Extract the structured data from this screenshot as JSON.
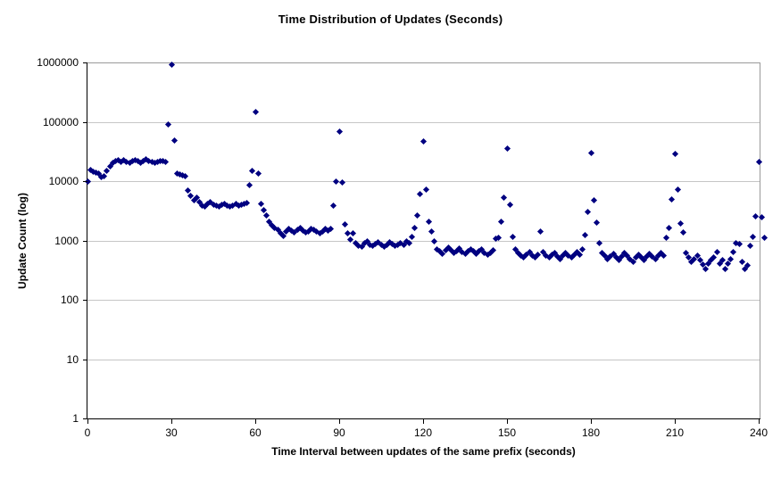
{
  "colors": {
    "background": "#ffffff",
    "gridline": "#c6c6c6",
    "axis": "#000000",
    "plot_border": "#9a9a9a",
    "marker": "#000080",
    "text": "#000000"
  },
  "chart_data": {
    "type": "scatter",
    "title": "Time Distribution of Updates (Seconds)",
    "xlabel": "Time Interval between updates of the same prefix (seconds)",
    "ylabel": "Update Count (log)",
    "legend": "none",
    "grid": "horizontal",
    "x_range": [
      0,
      240
    ],
    "x_ticks": [
      0,
      30,
      60,
      90,
      120,
      150,
      180,
      210,
      240
    ],
    "y_scale": "log",
    "y_range": [
      1,
      1000000
    ],
    "y_ticks": [
      1000000,
      100000,
      10000,
      1000,
      100,
      10,
      1
    ],
    "marker": {
      "shape": "diamond",
      "color": "#000080",
      "size": 6
    },
    "points": [
      [
        0,
        9800
      ],
      [
        1,
        15200
      ],
      [
        2,
        14500
      ],
      [
        3,
        13800
      ],
      [
        4,
        13200
      ],
      [
        5,
        11800
      ],
      [
        6,
        12300
      ],
      [
        7,
        14800
      ],
      [
        8,
        17500
      ],
      [
        9,
        20500
      ],
      [
        10,
        21800
      ],
      [
        11,
        22500
      ],
      [
        12,
        21300
      ],
      [
        13,
        22800
      ],
      [
        14,
        21000
      ],
      [
        15,
        20300
      ],
      [
        16,
        21500
      ],
      [
        17,
        22800
      ],
      [
        18,
        21500
      ],
      [
        19,
        20400
      ],
      [
        20,
        21800
      ],
      [
        21,
        23200
      ],
      [
        22,
        22000
      ],
      [
        23,
        20800
      ],
      [
        24,
        20300
      ],
      [
        25,
        20800
      ],
      [
        26,
        21500
      ],
      [
        27,
        22000
      ],
      [
        28,
        21200
      ],
      [
        29,
        90000
      ],
      [
        30,
        930000
      ],
      [
        31,
        48000
      ],
      [
        32,
        13500
      ],
      [
        33,
        13100
      ],
      [
        34,
        12700
      ],
      [
        35,
        12300
      ],
      [
        36,
        7000
      ],
      [
        37,
        5600
      ],
      [
        38,
        4700
      ],
      [
        39,
        5300
      ],
      [
        40,
        4400
      ],
      [
        41,
        3900
      ],
      [
        42,
        3700
      ],
      [
        43,
        4200
      ],
      [
        44,
        4400
      ],
      [
        45,
        4000
      ],
      [
        46,
        3800
      ],
      [
        47,
        3700
      ],
      [
        48,
        4000
      ],
      [
        49,
        4200
      ],
      [
        50,
        3900
      ],
      [
        51,
        3700
      ],
      [
        52,
        3900
      ],
      [
        53,
        4100
      ],
      [
        54,
        3800
      ],
      [
        55,
        4000
      ],
      [
        56,
        4200
      ],
      [
        57,
        4300
      ],
      [
        58,
        8500
      ],
      [
        59,
        15000
      ],
      [
        60,
        145000
      ],
      [
        61,
        13200
      ],
      [
        62,
        4100
      ],
      [
        63,
        3300
      ],
      [
        64,
        2600
      ],
      [
        65,
        2100
      ],
      [
        66,
        1800
      ],
      [
        67,
        1600
      ],
      [
        68,
        1500
      ],
      [
        69,
        1300
      ],
      [
        70,
        1200
      ],
      [
        71,
        1400
      ],
      [
        72,
        1550
      ],
      [
        73,
        1450
      ],
      [
        74,
        1350
      ],
      [
        75,
        1500
      ],
      [
        76,
        1600
      ],
      [
        77,
        1450
      ],
      [
        78,
        1350
      ],
      [
        79,
        1400
      ],
      [
        80,
        1550
      ],
      [
        81,
        1500
      ],
      [
        82,
        1400
      ],
      [
        83,
        1300
      ],
      [
        84,
        1400
      ],
      [
        85,
        1550
      ],
      [
        86,
        1450
      ],
      [
        87,
        1550
      ],
      [
        88,
        3900
      ],
      [
        89,
        9800
      ],
      [
        90,
        68000
      ],
      [
        91,
        9500
      ],
      [
        92,
        1850
      ],
      [
        93,
        1300
      ],
      [
        94,
        1050
      ],
      [
        95,
        1300
      ],
      [
        96,
        900
      ],
      [
        97,
        820
      ],
      [
        98,
        780
      ],
      [
        99,
        900
      ],
      [
        100,
        950
      ],
      [
        101,
        850
      ],
      [
        102,
        800
      ],
      [
        103,
        880
      ],
      [
        104,
        920
      ],
      [
        105,
        850
      ],
      [
        106,
        780
      ],
      [
        107,
        850
      ],
      [
        108,
        920
      ],
      [
        109,
        870
      ],
      [
        110,
        800
      ],
      [
        111,
        850
      ],
      [
        112,
        900
      ],
      [
        113,
        850
      ],
      [
        114,
        950
      ],
      [
        115,
        900
      ],
      [
        116,
        1150
      ],
      [
        117,
        1600
      ],
      [
        118,
        2650
      ],
      [
        119,
        6000
      ],
      [
        120,
        46500
      ],
      [
        121,
        7300
      ],
      [
        122,
        2100
      ],
      [
        123,
        1400
      ],
      [
        124,
        950
      ],
      [
        125,
        700
      ],
      [
        126,
        650
      ],
      [
        127,
        600
      ],
      [
        128,
        680
      ],
      [
        129,
        750
      ],
      [
        130,
        680
      ],
      [
        131,
        620
      ],
      [
        132,
        660
      ],
      [
        133,
        720
      ],
      [
        134,
        640
      ],
      [
        135,
        590
      ],
      [
        136,
        650
      ],
      [
        137,
        710
      ],
      [
        138,
        650
      ],
      [
        139,
        600
      ],
      [
        140,
        650
      ],
      [
        141,
        700
      ],
      [
        142,
        620
      ],
      [
        143,
        570
      ],
      [
        144,
        620
      ],
      [
        145,
        690
      ],
      [
        146,
        1070
      ],
      [
        147,
        1100
      ],
      [
        148,
        2100
      ],
      [
        149,
        5300
      ],
      [
        150,
        36000
      ],
      [
        151,
        4000
      ],
      [
        152,
        1150
      ],
      [
        153,
        700
      ],
      [
        154,
        620
      ],
      [
        155,
        560
      ],
      [
        156,
        510
      ],
      [
        157,
        570
      ],
      [
        158,
        630
      ],
      [
        159,
        560
      ],
      [
        160,
        510
      ],
      [
        161,
        580
      ],
      [
        162,
        1400
      ],
      [
        163,
        630
      ],
      [
        164,
        560
      ],
      [
        165,
        510
      ],
      [
        166,
        570
      ],
      [
        167,
        610
      ],
      [
        168,
        530
      ],
      [
        169,
        490
      ],
      [
        170,
        560
      ],
      [
        171,
        610
      ],
      [
        172,
        560
      ],
      [
        173,
        510
      ],
      [
        174,
        570
      ],
      [
        175,
        630
      ],
      [
        176,
        580
      ],
      [
        177,
        700
      ],
      [
        178,
        1230
      ],
      [
        179,
        3000
      ],
      [
        180,
        29500
      ],
      [
        181,
        4800
      ],
      [
        182,
        2000
      ],
      [
        183,
        900
      ],
      [
        184,
        620
      ],
      [
        185,
        560
      ],
      [
        186,
        490
      ],
      [
        187,
        530
      ],
      [
        188,
        590
      ],
      [
        189,
        510
      ],
      [
        190,
        460
      ],
      [
        191,
        530
      ],
      [
        192,
        610
      ],
      [
        193,
        560
      ],
      [
        194,
        490
      ],
      [
        195,
        440
      ],
      [
        196,
        510
      ],
      [
        197,
        570
      ],
      [
        198,
        510
      ],
      [
        199,
        460
      ],
      [
        200,
        530
      ],
      [
        201,
        590
      ],
      [
        202,
        530
      ],
      [
        203,
        480
      ],
      [
        204,
        550
      ],
      [
        205,
        610
      ],
      [
        206,
        560
      ],
      [
        207,
        1100
      ],
      [
        208,
        1650
      ],
      [
        209,
        5000
      ],
      [
        210,
        28500
      ],
      [
        211,
        7100
      ],
      [
        212,
        1900
      ],
      [
        213,
        1350
      ],
      [
        214,
        620
      ],
      [
        215,
        520
      ],
      [
        216,
        430
      ],
      [
        217,
        490
      ],
      [
        218,
        560
      ],
      [
        219,
        460
      ],
      [
        220,
        390
      ],
      [
        221,
        330
      ],
      [
        222,
        400
      ],
      [
        223,
        470
      ],
      [
        224,
        520
      ],
      [
        225,
        630
      ],
      [
        226,
        400
      ],
      [
        227,
        460
      ],
      [
        228,
        330
      ],
      [
        229,
        410
      ],
      [
        230,
        480
      ],
      [
        231,
        630
      ],
      [
        232,
        900
      ],
      [
        233,
        880
      ],
      [
        234,
        430
      ],
      [
        235,
        330
      ],
      [
        236,
        380
      ],
      [
        237,
        800
      ],
      [
        238,
        1150
      ],
      [
        239,
        2550
      ],
      [
        240,
        21000
      ],
      [
        241,
        2500
      ],
      [
        242,
        1100
      ]
    ]
  }
}
